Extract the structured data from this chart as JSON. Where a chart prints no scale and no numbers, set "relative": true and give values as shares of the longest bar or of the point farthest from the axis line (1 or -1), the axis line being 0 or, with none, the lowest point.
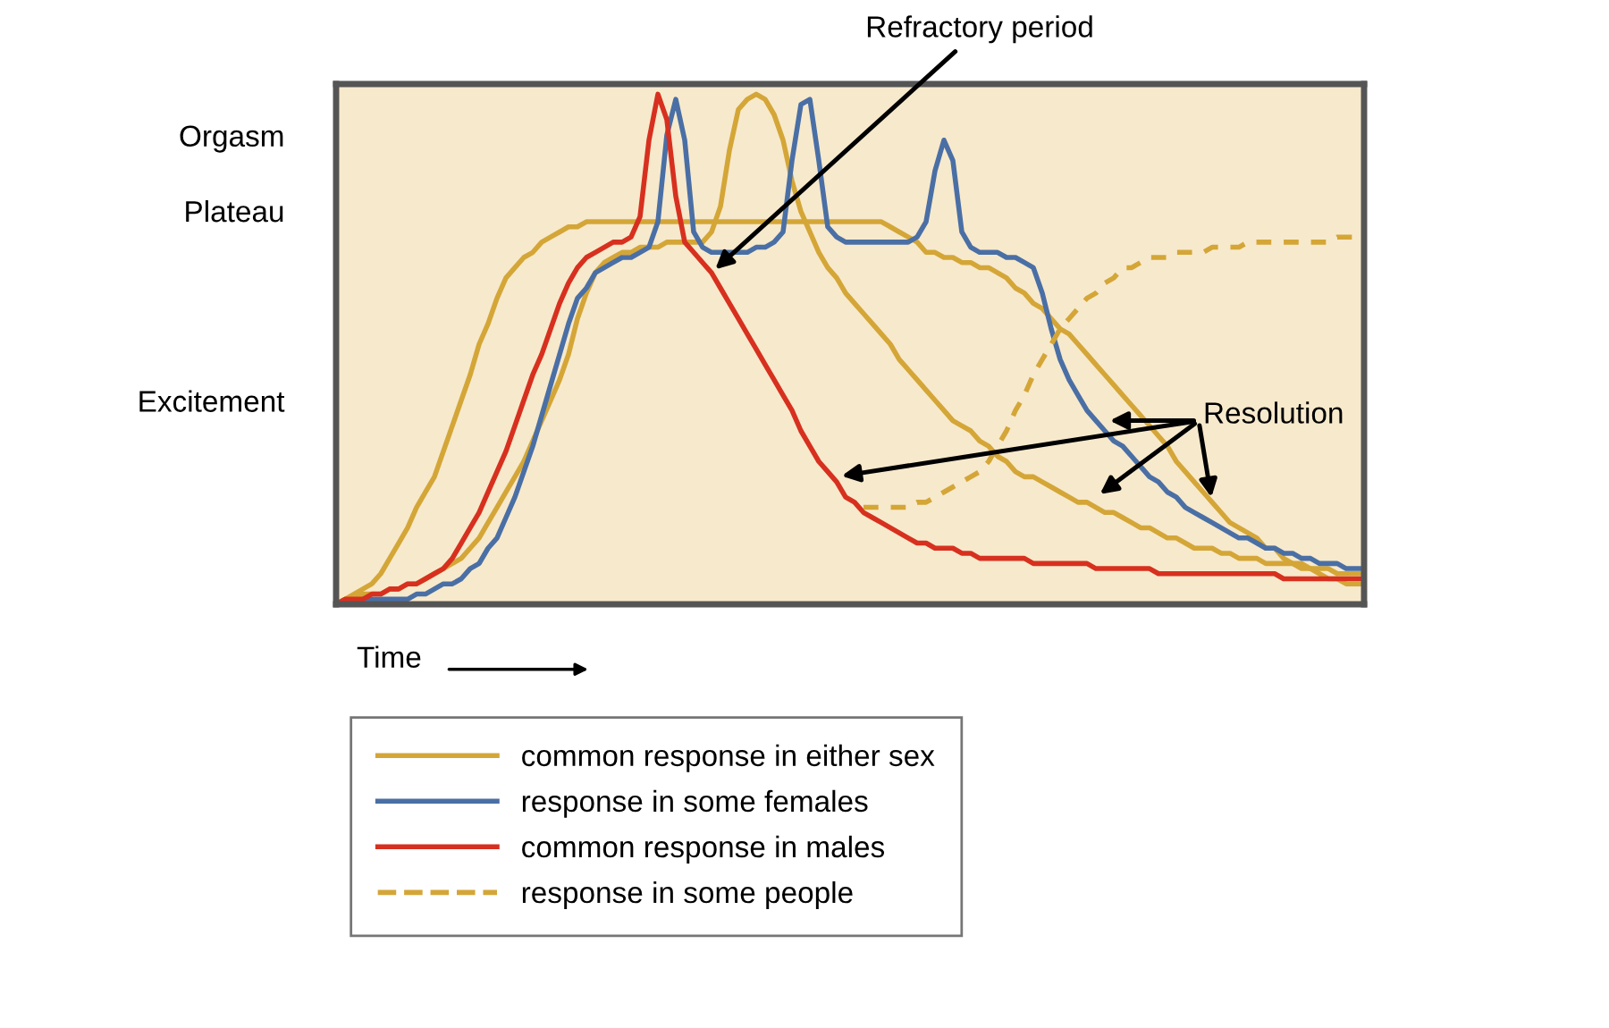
{
  "chart_data": {
    "type": "line",
    "relative": true,
    "xlabel": "Time",
    "categories": [
      null,
      null,
      null,
      null,
      null,
      null,
      null,
      null,
      null,
      null,
      null,
      null,
      null,
      null,
      null,
      null,
      null,
      null,
      null,
      null,
      null,
      null,
      null,
      null,
      null,
      null,
      null,
      null,
      null,
      null,
      null,
      null,
      null,
      null,
      null,
      null,
      null,
      null,
      null,
      null,
      null,
      null,
      null,
      null,
      null,
      null,
      null,
      null,
      null,
      null,
      null,
      null,
      null,
      null,
      null,
      null,
      null,
      null,
      null,
      null,
      null,
      null,
      null,
      null,
      null,
      null,
      null,
      null,
      null,
      null,
      null,
      null,
      null,
      null,
      null,
      null,
      null,
      null,
      null,
      null,
      null,
      null,
      null,
      null,
      null,
      null,
      null,
      null,
      null,
      null,
      null,
      null,
      null,
      null,
      null,
      null,
      null,
      null,
      null,
      null,
      null,
      null,
      null,
      null,
      null,
      null,
      null,
      null,
      null,
      null,
      null,
      null,
      null,
      null,
      null,
      null
    ],
    "series": [
      {
        "name": "common response in either sex",
        "color": "#d4a637",
        "values": [
          0,
          0.01,
          0.02,
          0.03,
          0.04,
          0.06,
          0.09,
          0.12,
          0.15,
          0.19,
          0.22,
          0.25,
          0.3,
          0.35,
          0.4,
          0.45,
          0.51,
          0.55,
          0.6,
          0.64,
          0.66,
          0.68,
          0.69,
          0.71,
          0.72,
          0.73,
          0.74,
          0.74,
          0.75,
          0.75,
          0.75,
          0.75,
          0.75,
          0.75,
          0.75,
          0.75,
          0.75,
          0.75,
          0.75,
          0.75,
          0.75,
          0.75,
          0.75,
          0.75,
          0.75,
          0.75,
          0.75,
          0.75,
          0.75,
          0.75,
          0.75,
          0.75,
          0.75,
          0.75,
          0.75,
          0.75,
          0.75,
          0.75,
          0.75,
          0.75,
          0.75,
          0.75,
          0.74,
          0.73,
          0.72,
          0.71,
          0.69,
          0.69,
          0.68,
          0.68,
          0.67,
          0.67,
          0.66,
          0.66,
          0.65,
          0.64,
          0.62,
          0.61,
          0.59,
          0.58,
          0.56,
          0.54,
          0.53,
          0.51,
          0.49,
          0.47,
          0.45,
          0.43,
          0.41,
          0.39,
          0.37,
          0.35,
          0.33,
          0.31,
          0.28,
          0.26,
          0.24,
          0.22,
          0.2,
          0.18,
          0.16,
          0.15,
          0.14,
          0.13,
          0.11,
          0.11,
          0.09,
          0.08,
          0.08,
          0.07,
          0.06,
          0.05,
          0.05,
          0.04,
          0.04,
          0.04
        ]
      },
      {
        "color": "#d4a637",
        "values": [
          0,
          0.01,
          0.01,
          0.02,
          0.02,
          0.02,
          0.03,
          0.03,
          0.04,
          0.04,
          0.05,
          0.06,
          0.07,
          0.08,
          0.09,
          0.11,
          0.13,
          0.16,
          0.19,
          0.22,
          0.25,
          0.28,
          0.32,
          0.36,
          0.4,
          0.44,
          0.49,
          0.56,
          0.61,
          0.65,
          0.67,
          0.68,
          0.69,
          0.69,
          0.7,
          0.7,
          0.7,
          0.71,
          0.71,
          0.71,
          0.71,
          0.71,
          0.73,
          0.78,
          0.89,
          0.97,
          0.99,
          1.0,
          0.99,
          0.96,
          0.91,
          0.83,
          0.77,
          0.73,
          0.69,
          0.66,
          0.64,
          0.61,
          0.59,
          0.57,
          0.55,
          0.53,
          0.51,
          0.48,
          0.46,
          0.44,
          0.42,
          0.4,
          0.38,
          0.36,
          0.35,
          0.34,
          0.32,
          0.31,
          0.29,
          0.28,
          0.26,
          0.25,
          0.25,
          0.24,
          0.23,
          0.22,
          0.21,
          0.2,
          0.2,
          0.19,
          0.18,
          0.18,
          0.17,
          0.16,
          0.15,
          0.15,
          0.14,
          0.13,
          0.13,
          0.12,
          0.11,
          0.11,
          0.11,
          0.1,
          0.1,
          0.09,
          0.09,
          0.09,
          0.08,
          0.08,
          0.08,
          0.08,
          0.07,
          0.07,
          0.07,
          0.07,
          0.06,
          0.06,
          0.06,
          0.06
        ]
      },
      {
        "name": "response in some females",
        "color": "#4a6fa5",
        "values": [
          0,
          0,
          0,
          0.01,
          0.01,
          0.01,
          0.01,
          0.01,
          0.01,
          0.02,
          0.02,
          0.03,
          0.04,
          0.04,
          0.05,
          0.07,
          0.08,
          0.11,
          0.13,
          0.17,
          0.21,
          0.26,
          0.31,
          0.37,
          0.43,
          0.49,
          0.55,
          0.6,
          0.62,
          0.65,
          0.66,
          0.67,
          0.68,
          0.68,
          0.69,
          0.7,
          0.75,
          0.92,
          0.99,
          0.91,
          0.73,
          0.7,
          0.69,
          0.69,
          0.69,
          0.69,
          0.69,
          0.7,
          0.7,
          0.71,
          0.73,
          0.87,
          0.98,
          0.99,
          0.87,
          0.74,
          0.72,
          0.71,
          0.71,
          0.71,
          0.71,
          0.71,
          0.71,
          0.71,
          0.71,
          0.72,
          0.75,
          0.85,
          0.91,
          0.87,
          0.73,
          0.7,
          0.69,
          0.69,
          0.69,
          0.68,
          0.68,
          0.67,
          0.66,
          0.61,
          0.54,
          0.48,
          0.44,
          0.41,
          0.38,
          0.36,
          0.34,
          0.32,
          0.31,
          0.29,
          0.27,
          0.25,
          0.24,
          0.22,
          0.21,
          0.19,
          0.18,
          0.17,
          0.16,
          0.15,
          0.14,
          0.13,
          0.13,
          0.12,
          0.11,
          0.11,
          0.1,
          0.1,
          0.09,
          0.09,
          0.08,
          0.08,
          0.08,
          0.07,
          0.07,
          0.07
        ]
      },
      {
        "name": "common response in males",
        "color": "#d7301f",
        "values": [
          0,
          0.01,
          0.01,
          0.01,
          0.02,
          0.02,
          0.03,
          0.03,
          0.04,
          0.04,
          0.05,
          0.06,
          0.07,
          0.09,
          0.12,
          0.15,
          0.18,
          0.22,
          0.26,
          0.3,
          0.35,
          0.4,
          0.45,
          0.49,
          0.54,
          0.59,
          0.63,
          0.66,
          0.68,
          0.69,
          0.7,
          0.71,
          0.71,
          0.72,
          0.76,
          0.91,
          1.0,
          0.95,
          0.8,
          0.71,
          0.69,
          0.67,
          0.65,
          0.62,
          0.59,
          0.56,
          0.53,
          0.5,
          0.47,
          0.44,
          0.41,
          0.38,
          0.34,
          0.31,
          0.28,
          0.26,
          0.24,
          0.21,
          0.2,
          0.18,
          0.17,
          0.16,
          0.15,
          0.14,
          0.13,
          0.12,
          0.12,
          0.11,
          0.11,
          0.11,
          0.1,
          0.1,
          0.09,
          0.09,
          0.09,
          0.09,
          0.09,
          0.09,
          0.08,
          0.08,
          0.08,
          0.08,
          0.08,
          0.08,
          0.08,
          0.07,
          0.07,
          0.07,
          0.07,
          0.07,
          0.07,
          0.07,
          0.06,
          0.06,
          0.06,
          0.06,
          0.06,
          0.06,
          0.06,
          0.06,
          0.06,
          0.06,
          0.06,
          0.06,
          0.06,
          0.06,
          0.05,
          0.05,
          0.05,
          0.05,
          0.05,
          0.05,
          0.05,
          0.05,
          0.05,
          0.05
        ]
      },
      {
        "name": "response in some people",
        "color": "#d4a637",
        "line_style": "dashed",
        "values": [
          null,
          null,
          null,
          null,
          null,
          null,
          null,
          null,
          null,
          null,
          null,
          null,
          null,
          null,
          null,
          null,
          null,
          null,
          null,
          null,
          null,
          null,
          null,
          null,
          null,
          null,
          null,
          null,
          null,
          null,
          null,
          null,
          null,
          null,
          null,
          null,
          null,
          null,
          null,
          null,
          null,
          null,
          null,
          null,
          null,
          null,
          null,
          null,
          null,
          null,
          null,
          null,
          null,
          null,
          null,
          null,
          null,
          null,
          null,
          0.19,
          0.19,
          0.19,
          0.19,
          0.19,
          0.19,
          0.2,
          0.2,
          0.21,
          0.22,
          0.23,
          0.24,
          0.25,
          0.26,
          0.28,
          0.31,
          0.34,
          0.38,
          0.41,
          0.45,
          0.48,
          0.51,
          0.54,
          0.56,
          0.58,
          0.6,
          0.61,
          0.63,
          0.64,
          0.66,
          0.66,
          0.67,
          0.68,
          0.68,
          0.68,
          0.69,
          0.69,
          0.69,
          0.69,
          0.7,
          0.7,
          0.7,
          0.7,
          0.71,
          0.71,
          0.71,
          0.71,
          0.71,
          0.71,
          0.71,
          0.71,
          0.71,
          0.71,
          0.72,
          0.72,
          0.72,
          0.72
        ]
      }
    ],
    "annotations": [
      "Orgasm",
      "Plateau",
      "Excitement",
      "Refractory period",
      "Resolution"
    ],
    "legend": "bottom",
    "marker": "none",
    "line_style": "solid"
  }
}
